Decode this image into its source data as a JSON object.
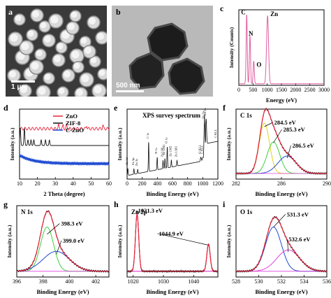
{
  "figure": {
    "panels": [
      {
        "id": "a",
        "label": "a",
        "scale_bar": "1 μm"
      },
      {
        "id": "b",
        "label": "b",
        "scale_bar": "500 nm"
      },
      {
        "id": "c",
        "label": "c"
      },
      {
        "id": "d",
        "label": "d"
      },
      {
        "id": "e",
        "label": "e"
      },
      {
        "id": "f",
        "label": "f"
      },
      {
        "id": "g",
        "label": "g"
      },
      {
        "id": "h",
        "label": "h"
      },
      {
        "id": "i",
        "label": "i"
      }
    ]
  },
  "colors": {
    "red": "#e8243c",
    "pink": "#e05fa0",
    "black": "#111111",
    "blue": "#1f4bd1",
    "green": "#3fcf3f",
    "magenta": "#e040e0",
    "yellow": "#e6d21a"
  },
  "chart_data": [
    {
      "id": "c",
      "type": "line",
      "xlabel": "Energy (eV)",
      "ylabel": "Intensity (Counts)",
      "xlim": [
        0,
        3000
      ],
      "ylim": [
        0,
        1.0
      ],
      "xticks": [
        0,
        500,
        1000,
        1500,
        2000,
        2500,
        3000
      ],
      "peaks": [
        {
          "label": "C",
          "x": 277,
          "y": 0.92
        },
        {
          "label": "N",
          "x": 392,
          "y": 0.64
        },
        {
          "label": "O",
          "x": 525,
          "y": 0.3
        },
        {
          "label": "Zn",
          "x": 1012,
          "y": 0.9
        }
      ]
    },
    {
      "id": "d",
      "type": "line",
      "xlabel": "2 Theta (degree)",
      "ylabel": "Intensity (a.u.)",
      "xlim": [
        10,
        60
      ],
      "xticks": [
        10,
        20,
        30,
        40,
        50,
        60
      ],
      "series": [
        {
          "name": "ZnO"
        },
        {
          "name": "ZIF-8"
        },
        {
          "name": "C-ZnO"
        }
      ],
      "legend": "top-center"
    },
    {
      "id": "e",
      "type": "line",
      "title": "XPS survey spectrum",
      "xlabel": "Binding Energy (eV)",
      "ylabel": "Intensity (a.u.)",
      "xlim": [
        0,
        1200
      ],
      "xticks": [
        0,
        200,
        400,
        600,
        800,
        1000,
        1200
      ],
      "peak_labels": [
        {
          "label": "Zn 2p",
          "x": 1022
        },
        {
          "label": "Zn 2p",
          "x": 1045
        },
        {
          "label": "C 1s",
          "x": 285
        },
        {
          "label": "N 1s",
          "x": 398
        },
        {
          "label": "O 1s",
          "x": 531
        },
        {
          "label": "Zn 3d",
          "x": 10
        },
        {
          "label": "Zn 3p",
          "x": 90
        },
        {
          "label": "Zn 3s",
          "x": 140
        },
        {
          "label": "Zn LM",
          "x": 475
        },
        {
          "label": "Zn LM1",
          "x": 500
        },
        {
          "label": "Zn LM2",
          "x": 585
        },
        {
          "label": "Zn LM3",
          "x": 660
        },
        {
          "label": "C KLL",
          "x": 1000
        },
        {
          "label": "O KLL",
          "x": 975
        },
        {
          "label": "C KLL",
          "x": 1220
        }
      ]
    },
    {
      "id": "f",
      "type": "line",
      "title": "C 1s",
      "xlabel": "Binding Energy (eV)",
      "ylabel": "Intensity (a.u.)",
      "xlim": [
        282,
        290
      ],
      "xticks": [
        282,
        286,
        290
      ],
      "components": [
        {
          "label": "284.5 eV",
          "center": 284.5
        },
        {
          "label": "285.3 eV",
          "center": 285.3
        },
        {
          "label": "286.5 eV",
          "center": 286.5
        }
      ]
    },
    {
      "id": "g",
      "type": "line",
      "title": "N 1s",
      "xlabel": "Binding Energy (eV)",
      "ylabel": "Intensity (a.u.)",
      "xlim": [
        396,
        403
      ],
      "xticks": [
        396,
        398,
        400,
        402
      ],
      "components": [
        {
          "label": "398.3 eV",
          "center": 398.3
        },
        {
          "label": "399.0 eV",
          "center": 399.0
        }
      ]
    },
    {
      "id": "h",
      "type": "line",
      "title": "Zn 2p",
      "xlabel": "Binding Energy (eV)",
      "ylabel": "Intensity (a.u.)",
      "xlim": [
        1018,
        1048
      ],
      "xticks": [
        1020,
        1030,
        1040
      ],
      "components": [
        {
          "label": "1021.3 eV",
          "center": 1021.3
        },
        {
          "label": "1044.9 eV",
          "center": 1044.9
        }
      ]
    },
    {
      "id": "i",
      "type": "line",
      "title": "O 1s",
      "xlabel": "Binding Energy (eV)",
      "ylabel": "Intensity (a.u.)",
      "xlim": [
        528,
        536
      ],
      "xticks": [
        528,
        530,
        532,
        534,
        536
      ],
      "components": [
        {
          "label": "531.3 eV",
          "center": 531.3
        },
        {
          "label": "532.6 eV",
          "center": 532.6
        }
      ]
    }
  ]
}
